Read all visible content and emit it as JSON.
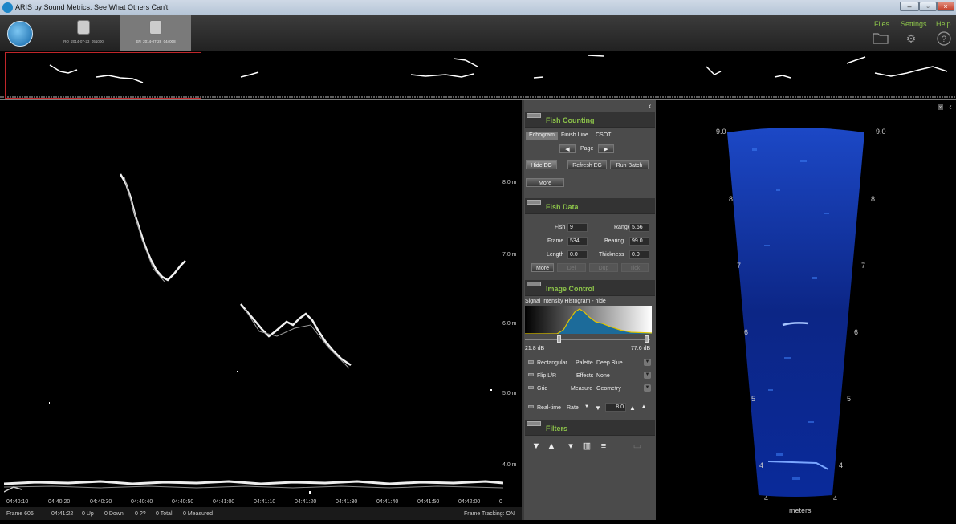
{
  "window": {
    "title": "ARIS by Sound Metrics: See What Others Can't",
    "min": "–",
    "max": "▫",
    "close": "×"
  },
  "files": [
    {
      "name": "RO_2014-07-23_051000",
      "active": false
    },
    {
      "name": "EN_2014-07-28_044008",
      "active": true
    }
  ],
  "menu": {
    "files": "Files",
    "settings": "Settings",
    "help": "Help"
  },
  "echogram": {
    "range_labels": [
      "8.0 m",
      "7.0 m",
      "6.0 m",
      "5.0 m",
      "4.0 m"
    ],
    "time_ticks": [
      "04:40:10",
      "04:40:20",
      "04:40:30",
      "04:40:40",
      "04:40:50",
      "04:41:00",
      "04:41:10",
      "04:41:20",
      "04:41:30",
      "04:41:40",
      "04:41:50",
      "04:42:00",
      "0"
    ]
  },
  "status": {
    "frame": "Frame 606",
    "time": "04:41:22",
    "up": "0 Up",
    "down": "0 Down",
    "unknown": "0 ??",
    "total": "0 Total",
    "measured": "0 Measured",
    "tracking": "Frame Tracking: ON"
  },
  "fish_counting": {
    "title": "Fish Counting",
    "tabs": [
      "Echogram",
      "Finish Line",
      "CSOT"
    ],
    "page": "Page",
    "prev": "◀",
    "next": "▶",
    "hide_eg": "Hide EG",
    "refresh_eg": "Refresh EG",
    "run_batch": "Run Batch",
    "more": "More"
  },
  "fish_data": {
    "title": "Fish Data",
    "fish_label": "Fish",
    "fish": "9",
    "range_label": "Range",
    "range": "5.66",
    "frame_label": "Frame",
    "frame": "534",
    "bearing_label": "Bearing",
    "bearing": "99.0",
    "length_label": "Length",
    "length": "0.0",
    "thickness_label": "Thickness",
    "thickness": "0.0",
    "more": "More",
    "b1": "Del",
    "b2": "Dup",
    "b3": "Tick"
  },
  "image_control": {
    "title": "Image Control",
    "histogram_label": "Signal Intensity Histogram - hide",
    "min_db": "21.8 dB",
    "max_db": "77.6 dB",
    "rectangular": "Rectangular",
    "palette_label": "Palette",
    "palette": "Deep Blue",
    "flip": "Flip L/R",
    "effects_label": "Effects",
    "effects": "None",
    "grid": "Grid",
    "measure_label": "Measure",
    "measure": "Geometry",
    "realtime": "Real-time",
    "rate_label": "Rate",
    "rate": "8.0",
    "up": "▲",
    "down": "▼"
  },
  "filters": {
    "title": "Filters"
  },
  "sonar": {
    "left_labels": [
      "9.0",
      "8",
      "7",
      "6",
      "5",
      "4",
      "4"
    ],
    "right_labels": [
      "9.0",
      "8",
      "7",
      "6",
      "5",
      "4",
      "4"
    ],
    "units": "meters"
  },
  "colors": {
    "accent_green": "#8dc44a",
    "selection_red": "#c0262a",
    "sonar_blue": "#1f4fd0"
  }
}
